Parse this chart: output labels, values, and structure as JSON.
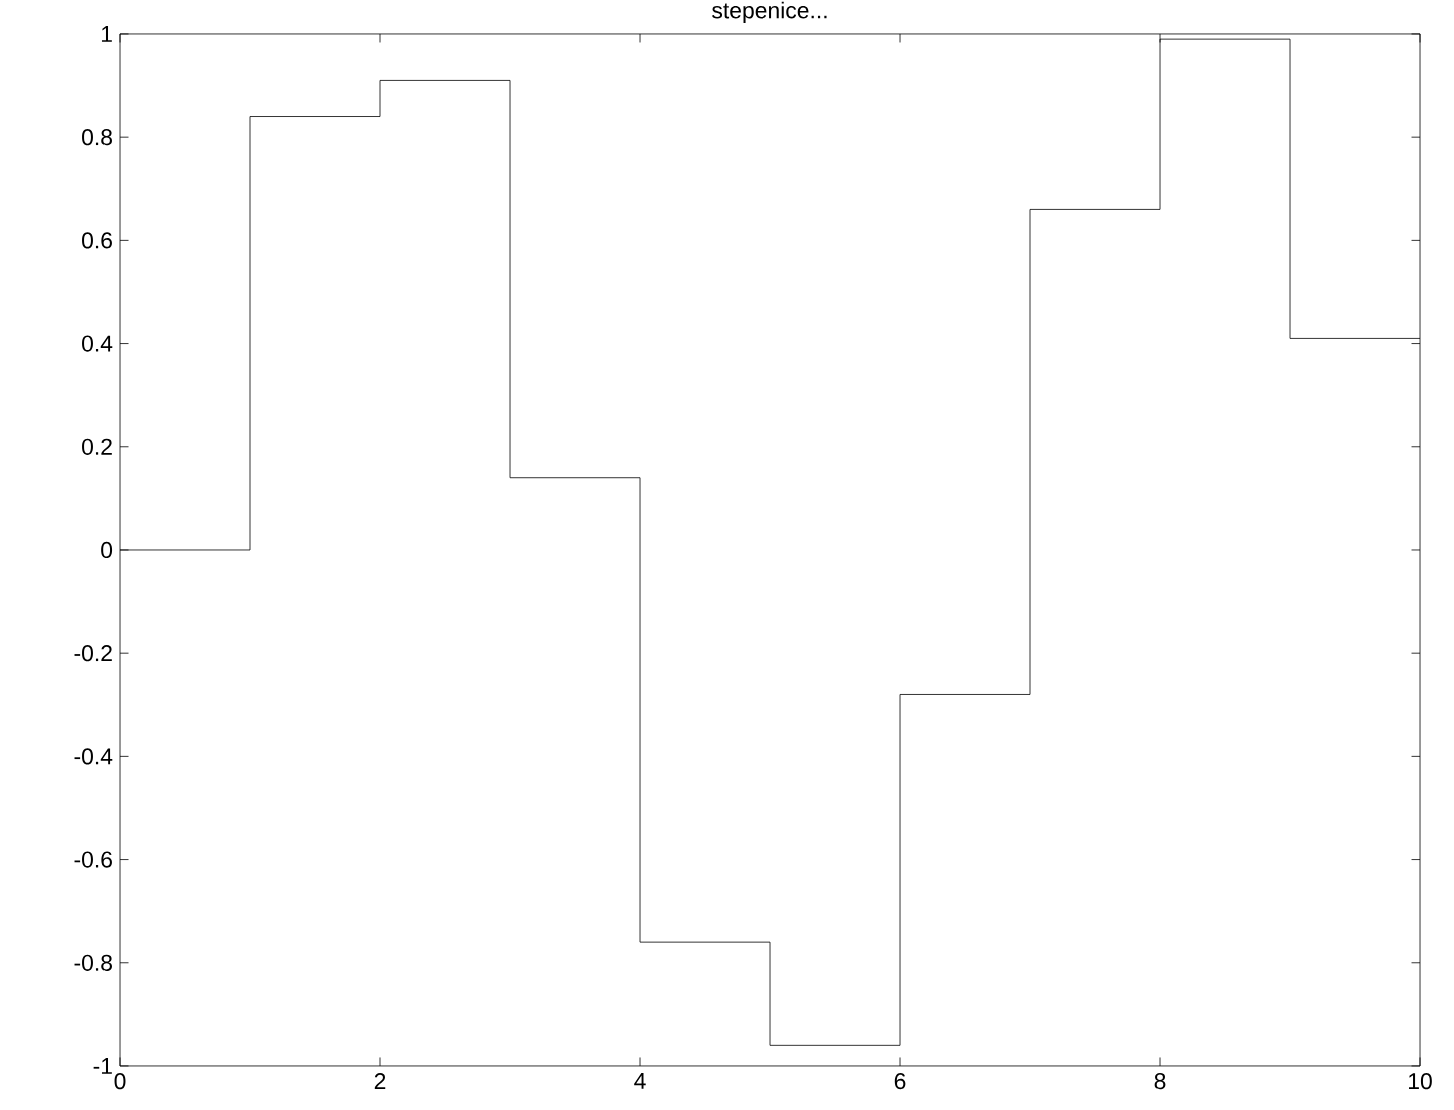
{
  "chart_data": {
    "type": "step",
    "title": "stepenice...",
    "x": [
      0,
      1,
      2,
      3,
      4,
      5,
      6,
      7,
      8,
      9,
      10
    ],
    "values": [
      0,
      0.84,
      0.91,
      0.14,
      -0.76,
      -0.96,
      -0.28,
      0.66,
      0.99,
      0.41,
      0.41
    ],
    "color": "#000000",
    "xlim": [
      0,
      10
    ],
    "xticks": [
      0,
      2,
      4,
      6,
      8,
      10
    ],
    "ylim": [
      -1,
      1
    ],
    "yticks": [
      -1,
      -0.8,
      -0.6,
      -0.4,
      -0.2,
      0,
      0.2,
      0.4,
      0.6,
      0.8,
      1
    ]
  }
}
